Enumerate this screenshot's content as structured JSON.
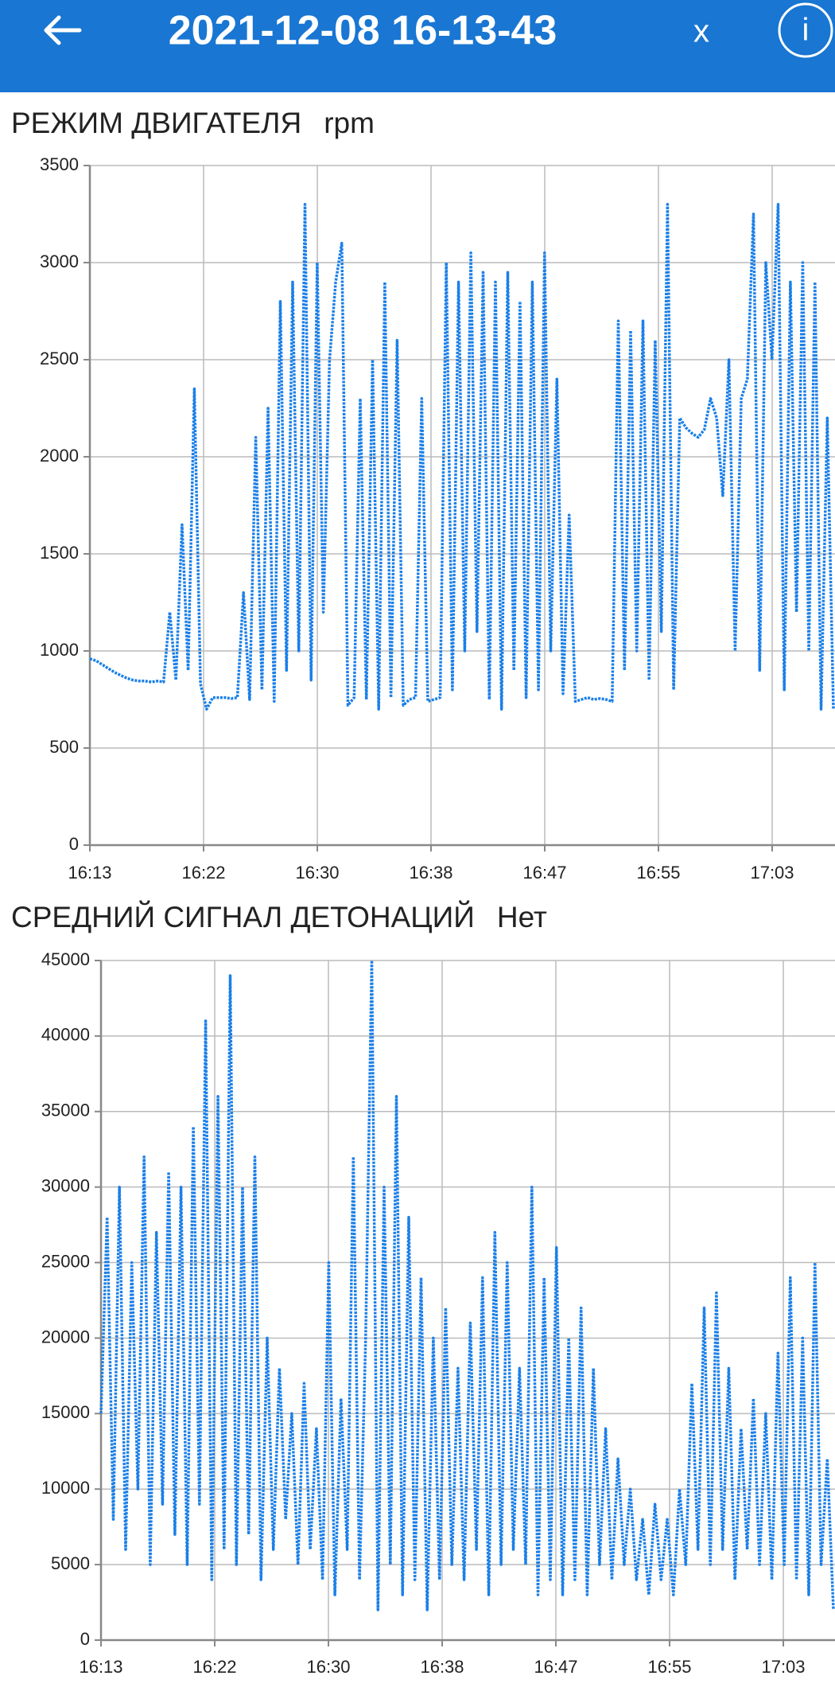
{
  "header": {
    "title": "2021-12-08 16-13-43",
    "close": "x",
    "info": "i"
  },
  "chart_data": [
    {
      "type": "line",
      "title": "РЕЖИМ ДВИГАТЕЛЯ",
      "y_label": "rpm",
      "color": "#1a7fe8",
      "grid": true,
      "ylim": [
        0,
        3500
      ],
      "yticks": [
        0,
        500,
        1000,
        1500,
        2000,
        2500,
        3000,
        3500
      ],
      "x_tick_labels": [
        "16:13",
        "16:22",
        "16:30",
        "16:38",
        "16:47",
        "16:55",
        "17:03"
      ],
      "values": [
        960,
        950,
        930,
        910,
        890,
        875,
        860,
        850,
        845,
        845,
        840,
        845,
        840,
        1200,
        850,
        1650,
        900,
        2350,
        830,
        700,
        760,
        760,
        760,
        755,
        760,
        1300,
        750,
        2100,
        800,
        2250,
        740,
        2800,
        900,
        2900,
        1000,
        3300,
        850,
        3000,
        1200,
        2500,
        2900,
        3100,
        720,
        760,
        2300,
        750,
        2500,
        700,
        2900,
        760,
        2600,
        720,
        750,
        760,
        2300,
        740,
        750,
        760,
        3000,
        800,
        2900,
        1000,
        3050,
        1100,
        2950,
        750,
        2900,
        700,
        2950,
        900,
        2800,
        760,
        2900,
        800,
        3050,
        1000,
        2400,
        780,
        1700,
        740,
        750,
        760,
        750,
        755,
        750,
        740,
        2700,
        900,
        2650,
        1000,
        2700,
        850,
        2600,
        1100,
        3300,
        800,
        2200,
        2150,
        2120,
        2100,
        2140,
        2300,
        2200,
        1800,
        2500,
        1000,
        2300,
        2400,
        3250,
        900,
        3000,
        2500,
        3300,
        800,
        2900,
        1200,
        3000,
        1000,
        2900,
        700,
        2200,
        700
      ]
    },
    {
      "type": "line",
      "title": "СРЕДНИЙ СИГНАЛ ДЕТОНАЦИЙ",
      "y_label": "Нет",
      "color": "#1a7fe8",
      "grid": true,
      "ylim": [
        0,
        45000
      ],
      "yticks": [
        0,
        5000,
        10000,
        15000,
        20000,
        25000,
        30000,
        35000,
        40000,
        45000
      ],
      "x_tick_labels": [
        "16:13",
        "16:22",
        "16:30",
        "16:38",
        "16:47",
        "16:55",
        "17:03"
      ],
      "values": [
        15000,
        28000,
        8000,
        30000,
        6000,
        25000,
        10000,
        32000,
        5000,
        27000,
        9000,
        31000,
        7000,
        30000,
        5000,
        34000,
        9000,
        41000,
        4000,
        36000,
        6000,
        44000,
        5000,
        30000,
        7000,
        32000,
        4000,
        20000,
        6000,
        18000,
        8000,
        15000,
        5000,
        17000,
        6000,
        14000,
        4000,
        25000,
        3000,
        16000,
        6000,
        32000,
        4000,
        20000,
        45000,
        2000,
        30000,
        5000,
        36000,
        3000,
        28000,
        4000,
        24000,
        2000,
        20000,
        4000,
        22000,
        5000,
        18000,
        4000,
        21000,
        6000,
        24000,
        3000,
        27000,
        5000,
        25000,
        6000,
        18000,
        5000,
        30000,
        3000,
        24000,
        4000,
        26000,
        3000,
        20000,
        4000,
        22000,
        3000,
        18000,
        5000,
        14000,
        4000,
        12000,
        5000,
        10000,
        4000,
        8000,
        3000,
        9000,
        4000,
        8000,
        3000,
        10000,
        5000,
        17000,
        6000,
        22000,
        5000,
        23000,
        6000,
        18000,
        4000,
        14000,
        6000,
        16000,
        5000,
        15000,
        4000,
        19000,
        5000,
        24000,
        4000,
        20000,
        3000,
        25000,
        5000,
        12000,
        2000
      ]
    }
  ]
}
